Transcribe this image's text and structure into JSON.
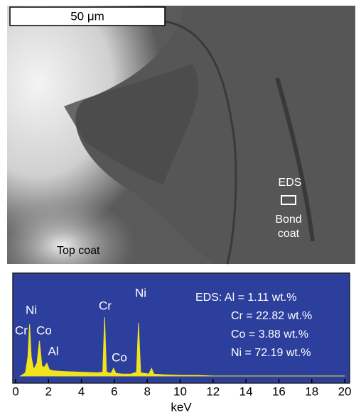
{
  "image": {
    "scale_bar": "50 μm",
    "labels": [
      "EDS",
      "Bond",
      "coat",
      "Top coat"
    ]
  },
  "chart_data": {
    "type": "line",
    "xlabel": "keV",
    "x": [
      0.3,
      0.6,
      0.75,
      0.85,
      0.95,
      1.1,
      1.3,
      1.45,
      1.6,
      1.75,
      1.9,
      2.05,
      2.3,
      3,
      4,
      5,
      5.3,
      5.41,
      5.52,
      5.8,
      5.95,
      6.1,
      6.5,
      7,
      7.35,
      7.47,
      7.6,
      8.1,
      8.26,
      8.4,
      9,
      10,
      11,
      11.5,
      12,
      20
    ],
    "series": [
      {
        "color": "#f2e41c",
        "values": [
          0,
          5,
          30,
          81,
          30,
          10,
          20,
          55,
          15,
          14,
          20,
          10,
          8,
          7,
          6,
          5,
          6,
          92,
          6,
          4,
          12,
          4,
          3,
          3,
          6,
          83,
          5,
          3,
          12,
          3,
          2,
          1,
          1,
          0.5,
          0,
          0
        ]
      }
    ],
    "xlim": [
      -0.17,
      20.3
    ],
    "ylim": [
      0,
      100
    ],
    "xticks": [
      0,
      2,
      4,
      6,
      8,
      10,
      12,
      14,
      16,
      18,
      20
    ],
    "annotations": [
      "Ni",
      "Cr",
      "Co",
      "Al",
      "Cr",
      "Ni",
      "Co"
    ],
    "composition": [
      "EDS: Al = 1.11 wt.%",
      "Cr = 22.82 wt.%",
      "Co = 3.88 wt.%",
      "Ni = 72.19 wt.%"
    ]
  }
}
